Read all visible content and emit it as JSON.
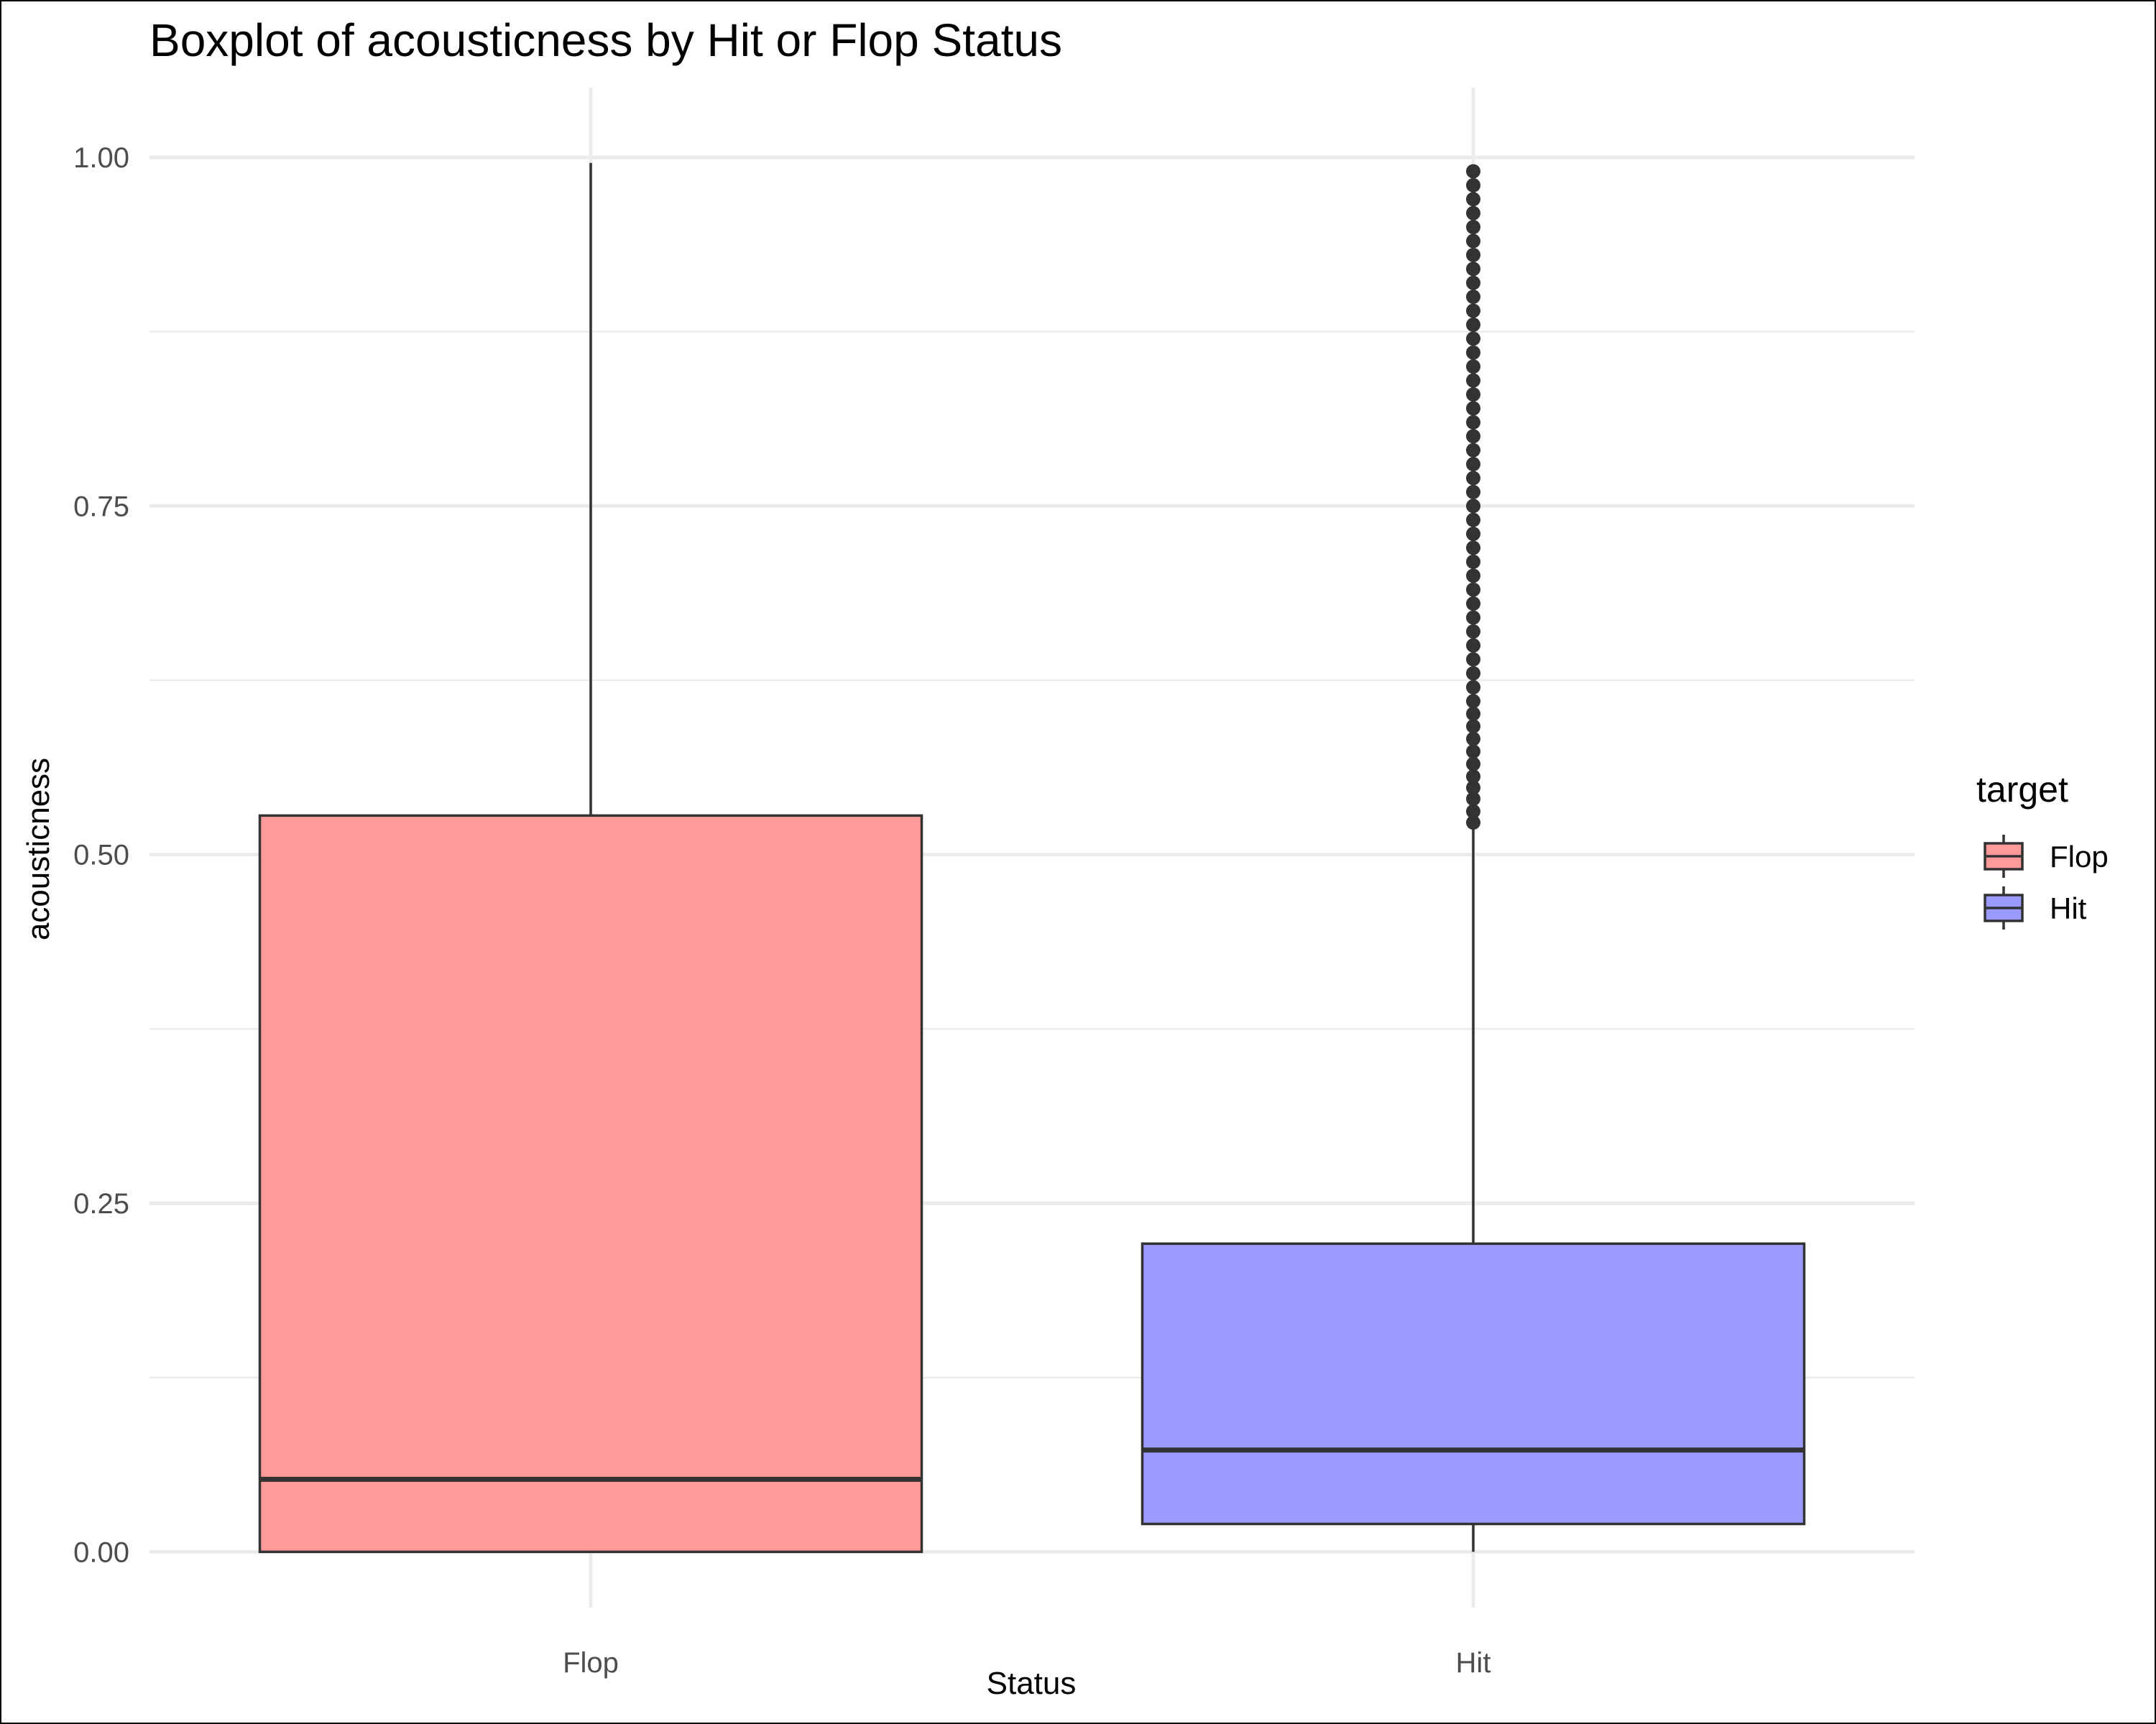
{
  "chart_data": {
    "type": "boxplot",
    "title": "Boxplot of acousticness by Hit or Flop Status",
    "xlabel": "Status",
    "ylabel": "acousticness",
    "categories": [
      "Flop",
      "Hit"
    ],
    "ylim": [
      -0.04,
      1.05
    ],
    "yticks": [
      0.0,
      0.25,
      0.5,
      0.75,
      1.0
    ],
    "ytick_labels": [
      "0.00",
      "0.25",
      "0.50",
      "0.75",
      "1.00"
    ],
    "grid": true,
    "legend": {
      "title": "target",
      "position": "right",
      "entries": [
        "Flop",
        "Hit"
      ]
    },
    "colors": {
      "Flop": "#ff9a9a",
      "Hit": "#9b9bff",
      "outline": "#333333",
      "grid": "#ebebeb"
    },
    "boxes": [
      {
        "name": "Flop",
        "whisker_low": 0.0,
        "q1": 0.0,
        "median": 0.052,
        "q3": 0.528,
        "whisker_high": 0.996,
        "outliers": []
      },
      {
        "name": "Hit",
        "whisker_low": 0.0,
        "q1": 0.02,
        "median": 0.073,
        "q3": 0.221,
        "whisker_high": 0.52,
        "outliers": [
          0.523,
          0.531,
          0.54,
          0.548,
          0.556,
          0.565,
          0.574,
          0.583,
          0.592,
          0.601,
          0.61,
          0.62,
          0.63,
          0.64,
          0.65,
          0.66,
          0.67,
          0.68,
          0.69,
          0.7,
          0.71,
          0.72,
          0.73,
          0.74,
          0.75,
          0.76,
          0.77,
          0.78,
          0.79,
          0.8,
          0.81,
          0.82,
          0.83,
          0.84,
          0.85,
          0.86,
          0.87,
          0.88,
          0.89,
          0.9,
          0.91,
          0.92,
          0.93,
          0.94,
          0.95,
          0.96,
          0.97,
          0.98,
          0.99
        ]
      }
    ]
  }
}
